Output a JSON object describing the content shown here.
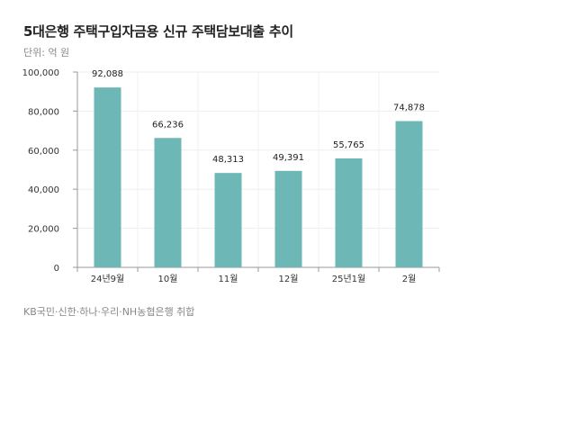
{
  "chart_data": {
    "type": "bar",
    "title": "5대은행 주택구입자금용 신규 주택담보대출 추이",
    "unit_label": "단위: 억 원",
    "source": "KB국민·신한·하나·우리·NH농협은행 취합",
    "categories": [
      "24년9월",
      "10월",
      "11월",
      "12월",
      "25년1월",
      "2월"
    ],
    "values": [
      92088,
      66236,
      48313,
      49391,
      55765,
      74878
    ],
    "value_labels": [
      "92,088",
      "66,236",
      "48,313",
      "49,391",
      "55,765",
      "74,878"
    ],
    "ylim": [
      0,
      100000
    ],
    "yticks": [
      0,
      20000,
      40000,
      60000,
      80000,
      100000
    ],
    "ytick_labels": [
      "0",
      "20,000",
      "40,000",
      "60,000",
      "80,000",
      "100,000"
    ],
    "bar_color": "#6db8b6",
    "grid": true
  }
}
